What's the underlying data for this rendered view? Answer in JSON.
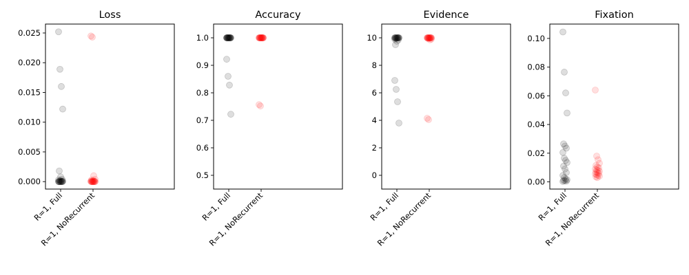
{
  "chart_data": [
    {
      "type": "scatter",
      "title": "Loss",
      "categories": [
        "R=1, Full",
        "R=1, NoRecurrent"
      ],
      "ylim": [
        -0.00125,
        0.0265
      ],
      "yticks": [
        0.0,
        0.005,
        0.01,
        0.015,
        0.02,
        0.025
      ],
      "ytick_labels": [
        "0.000",
        "0.005",
        "0.010",
        "0.015",
        "0.020",
        "0.025"
      ],
      "series": [
        {
          "color": "#000000",
          "values": [
            0.0252,
            0.0189,
            0.016,
            0.0122,
            0.0018,
            0.0008,
            0.0004,
            0.0003,
            0.0002,
            0.0001,
            0.0001,
            0.0,
            0.0,
            0.0,
            0.0,
            0.0,
            0.0,
            0.0,
            0.0,
            0.0,
            0.0,
            0.0
          ]
        },
        {
          "color": "#ff0000",
          "values": [
            0.0245,
            0.0243,
            0.001,
            0.0004,
            0.0003,
            0.0002,
            0.0001,
            0.0001,
            0.0,
            0.0,
            0.0,
            0.0,
            0.0,
            0.0,
            0.0,
            0.0,
            0.0,
            0.0,
            0.0,
            0.0
          ]
        }
      ]
    },
    {
      "type": "scatter",
      "title": "Accuracy",
      "categories": [
        "R=1, Full",
        "R=1, NoRecurrent"
      ],
      "ylim": [
        0.45,
        1.05
      ],
      "yticks": [
        0.5,
        0.6,
        0.7,
        0.8,
        0.9,
        1.0
      ],
      "ytick_labels": [
        "0.5",
        "0.6",
        "0.7",
        "0.8",
        "0.9",
        "1.0"
      ],
      "series": [
        {
          "color": "#000000",
          "values": [
            0.922,
            0.86,
            0.828,
            0.722,
            1.0,
            1.0,
            1.0,
            1.0,
            1.0,
            1.0,
            1.0,
            1.0,
            1.0,
            1.0,
            1.0,
            1.0,
            1.0,
            1.0,
            1.0,
            1.0,
            1.0,
            1.0
          ]
        },
        {
          "color": "#ff0000",
          "values": [
            0.757,
            0.752,
            1.0,
            1.0,
            1.0,
            1.0,
            1.0,
            1.0,
            1.0,
            1.0,
            1.0,
            1.0,
            1.0,
            1.0,
            1.0,
            1.0,
            1.0,
            1.0,
            1.0,
            1.0
          ]
        }
      ]
    },
    {
      "type": "scatter",
      "title": "Evidence",
      "categories": [
        "R=1, Full",
        "R=1, NoRecurrent"
      ],
      "ylim": [
        -1.0,
        11.0
      ],
      "yticks": [
        0,
        2,
        4,
        6,
        8,
        10
      ],
      "ytick_labels": [
        "0",
        "2",
        "4",
        "6",
        "8",
        "10"
      ],
      "series": [
        {
          "color": "#000000",
          "values": [
            6.9,
            6.25,
            5.35,
            3.8,
            9.5,
            9.75,
            9.85,
            9.9,
            9.95,
            10.0,
            10.0,
            10.0,
            10.0,
            10.0,
            10.0,
            10.0,
            10.0,
            10.0,
            10.0,
            10.0,
            10.0,
            10.0
          ]
        },
        {
          "color": "#ff0000",
          "values": [
            4.15,
            4.05,
            9.85,
            9.9,
            9.95,
            9.95,
            10.0,
            10.0,
            10.0,
            10.0,
            10.0,
            10.0,
            10.0,
            10.0,
            10.0,
            10.0,
            10.0,
            10.0,
            10.0,
            10.0
          ]
        }
      ]
    },
    {
      "type": "scatter",
      "title": "Fixation",
      "categories": [
        "R=1, Full",
        "R=1, NoRecurrent"
      ],
      "ylim": [
        -0.005,
        0.11
      ],
      "yticks": [
        0.0,
        0.02,
        0.04,
        0.06,
        0.08,
        0.1
      ],
      "ytick_labels": [
        "0.00",
        "0.02",
        "0.04",
        "0.06",
        "0.08",
        "0.10"
      ],
      "series": [
        {
          "color": "#000000",
          "values": [
            0.1045,
            0.0765,
            0.062,
            0.048,
            0.0265,
            0.025,
            0.0235,
            0.0205,
            0.0165,
            0.015,
            0.0135,
            0.011,
            0.009,
            0.0065,
            0.0045,
            0.003,
            0.002,
            0.0015,
            0.001,
            0.0008,
            0.0005,
            0.0003
          ]
        },
        {
          "color": "#ff0000",
          "values": [
            0.064,
            0.018,
            0.0155,
            0.013,
            0.0115,
            0.0105,
            0.0098,
            0.009,
            0.0085,
            0.008,
            0.0075,
            0.007,
            0.0065,
            0.006,
            0.0055,
            0.005,
            0.0045,
            0.004,
            0.0035,
            0.003
          ]
        }
      ]
    }
  ]
}
